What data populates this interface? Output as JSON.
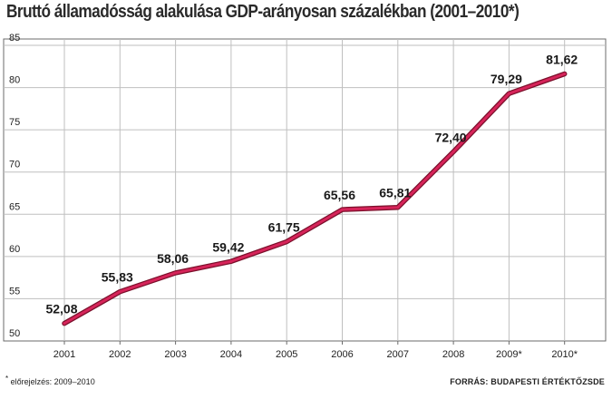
{
  "chart_data": {
    "type": "line",
    "title": "Bruttó államadósság alakulása GDP-arányosan százalékban (2001–2010*)",
    "categories": [
      "2001",
      "2002",
      "2003",
      "2004",
      "2005",
      "2006",
      "2007",
      "2008",
      "2009*",
      "2010*"
    ],
    "values": [
      52.08,
      55.83,
      58.06,
      59.42,
      61.75,
      65.56,
      65.81,
      72.4,
      79.29,
      81.62
    ],
    "data_labels": [
      "52,08",
      "55,83",
      "58,06",
      "59,42",
      "61,75",
      "65,56",
      "65,81",
      "72,40",
      "79,29",
      "81,62"
    ],
    "y_ticks": [
      50,
      55,
      60,
      65,
      70,
      75,
      80,
      85
    ],
    "ylim": [
      50,
      85
    ],
    "xlabel": "",
    "ylabel": "",
    "grid": true,
    "colors": {
      "line": "#d6245a",
      "line_outline": "#7a0f2a",
      "grid": "#bfbfbf",
      "frame": "#6b6b6b"
    }
  },
  "footnote": {
    "marker": "*",
    "text": " előrejelzés: 2009–2010"
  },
  "source": "FORRÁS: BUDAPESTI ÉRTÉKTŐZSDE"
}
